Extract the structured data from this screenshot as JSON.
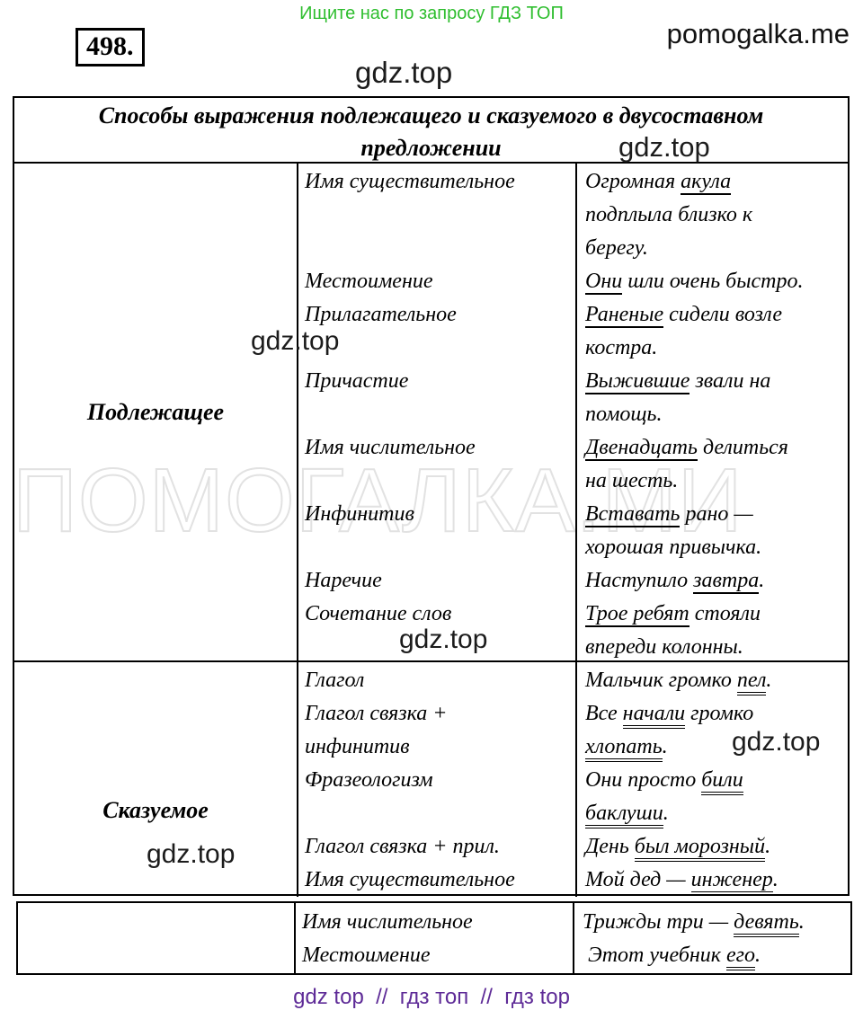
{
  "page": {
    "promo_text": "Ищите нас по запросу ГДЗ ТОП",
    "site_name": "pomogalka.me",
    "exercise_number": "498.",
    "watermark_gdz": "gdz.top",
    "watermark_big": "ПОМОГАЛКА.МИ",
    "footer_text": "gdz top  //  гдз топ  //  гдз top"
  },
  "colors": {
    "promo_green": "#2fbe2f",
    "footer_purple": "#5e2b97",
    "border_black": "#000000",
    "big_watermark_gray": "#e2e2e2"
  },
  "table": {
    "title_line1": "Способы выражения подлежащего и сказуемого в двусоставном",
    "title_line2": "предложении",
    "rows": [
      {
        "header": "Подлежащее",
        "col2_lines": [
          "Имя существительное",
          "",
          "",
          "Местоимение",
          "Прилагательное",
          "",
          "Причастие",
          "",
          "Имя числительное",
          "",
          "Инфинитив",
          "",
          "Наречие",
          "Сочетание слов",
          ""
        ],
        "col3_lines": [
          [
            {
              "t": "Огромная "
            },
            {
              "t": "акула",
              "u": 1
            }
          ],
          [
            {
              "t": "подплыла близко к"
            }
          ],
          [
            {
              "t": "берегу."
            }
          ],
          [
            {
              "t": "Они",
              "u": 1
            },
            {
              "t": " шли очень быстро."
            }
          ],
          [
            {
              "t": "Раненые",
              "u": 1
            },
            {
              "t": " сидели возле"
            }
          ],
          [
            {
              "t": "костра."
            }
          ],
          [
            {
              "t": "Выжившие",
              "u": 1
            },
            {
              "t": " звали на"
            }
          ],
          [
            {
              "t": "помощь."
            }
          ],
          [
            {
              "t": "Двенадцать",
              "u": 1
            },
            {
              "t": " делиться"
            }
          ],
          [
            {
              "t": "на шесть."
            }
          ],
          [
            {
              "t": "Вставать",
              "u": 1
            },
            {
              "t": " рано —"
            }
          ],
          [
            {
              "t": "хорошая привычка."
            }
          ],
          [
            {
              "t": "Наступило "
            },
            {
              "t": "завтра",
              "u": 1
            },
            {
              "t": "."
            }
          ],
          [
            {
              "t": "Трое ребят",
              "u": 1
            },
            {
              "t": " стояли"
            }
          ],
          [
            {
              "t": "впереди колонны."
            }
          ]
        ]
      },
      {
        "header": "Сказуемое",
        "col2_lines": [
          "Глагол",
          "Глагол связка +",
          "инфинитив",
          "Фразеологизм",
          "",
          "Глагол связка + прил.",
          "Имя существительное"
        ],
        "col3_lines": [
          [
            {
              "t": "Мальчик громко "
            },
            {
              "t": "пел",
              "u": 2
            },
            {
              "t": "."
            }
          ],
          [
            {
              "t": "Все "
            },
            {
              "t": "начали",
              "u": 2
            },
            {
              "t": " громко"
            }
          ],
          [
            {
              "t": "хлопать",
              "u": 2
            },
            {
              "t": "."
            }
          ],
          [
            {
              "t": "Они просто "
            },
            {
              "t": "били",
              "u": 2
            }
          ],
          [
            {
              "t": "баклуши",
              "u": 2
            },
            {
              "t": "."
            }
          ],
          [
            {
              "t": "День "
            },
            {
              "t": "был морозный",
              "u": 2
            },
            {
              "t": "."
            }
          ],
          [
            {
              "t": "Мой дед — "
            },
            {
              "t": "инженер",
              "u": 2
            },
            {
              "t": "."
            }
          ]
        ]
      }
    ]
  },
  "bottom_table": {
    "col2_lines": [
      "Имя числительное",
      "Местоимение"
    ],
    "col3_lines": [
      [
        {
          "t": "Трижды три — "
        },
        {
          "t": "девять",
          "u": 2
        },
        {
          "t": "."
        }
      ],
      [
        {
          "t": " Этот учебник "
        },
        {
          "t": "его",
          "u": 2
        },
        {
          "t": "."
        }
      ]
    ]
  }
}
